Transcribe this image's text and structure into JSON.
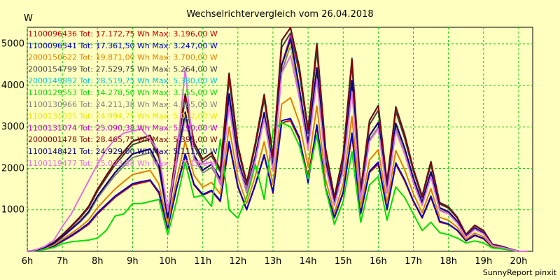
{
  "chart_data": {
    "type": "line",
    "title": "Wechselrichtervergleich vom 26.04.2018",
    "ylabel": "W",
    "xlabel": "",
    "ylim": [
      0,
      5400
    ],
    "xlim": [
      6,
      20.4
    ],
    "grid": true,
    "legend_position": "top-left",
    "y_ticks": [
      1000,
      2000,
      3000,
      4000,
      5000
    ],
    "y_tick_labels": [
      "1000",
      "2000",
      "3000",
      "4000",
      "5000"
    ],
    "x_ticks": [
      6,
      7,
      8,
      9,
      10,
      11,
      12,
      13,
      14,
      15,
      16,
      17,
      18,
      19,
      20
    ],
    "x_tick_labels": [
      "6h",
      "7h",
      "8h",
      "9h",
      "10h",
      "11h",
      "12h",
      "13h",
      "14h",
      "15h",
      "16h",
      "17h",
      "18h",
      "19h",
      "20h"
    ],
    "x": [
      6.0,
      6.25,
      6.5,
      6.75,
      7.0,
      7.25,
      7.5,
      7.75,
      8.0,
      8.25,
      8.5,
      8.75,
      9.0,
      9.25,
      9.5,
      9.75,
      10.0,
      10.25,
      10.5,
      10.75,
      11.0,
      11.25,
      11.5,
      11.75,
      12.0,
      12.25,
      12.5,
      12.75,
      13.0,
      13.25,
      13.5,
      13.75,
      14.0,
      14.25,
      14.5,
      14.75,
      15.0,
      15.25,
      15.5,
      15.75,
      16.0,
      16.25,
      16.5,
      16.75,
      17.0,
      17.25,
      17.5,
      17.75,
      18.0,
      18.25,
      18.5,
      18.75,
      19.0,
      19.25,
      19.5,
      19.75,
      20.0,
      20.25
    ],
    "series": [
      {
        "name": "1100096436 Tot: 17.172,75 Wh Max: 3.196,00 W",
        "color": "#cc0000",
        "values": [
          0,
          20,
          60,
          120,
          240,
          360,
          500,
          650,
          900,
          1100,
          1300,
          1450,
          1600,
          1650,
          1700,
          1400,
          550,
          1500,
          2300,
          1600,
          1350,
          1450,
          1200,
          2600,
          1550,
          1000,
          1600,
          2300,
          1400,
          3100,
          3150,
          2700,
          1800,
          3000,
          1500,
          800,
          1400,
          2800,
          900,
          1900,
          2100,
          1000,
          2100,
          1700,
          1200,
          800,
          1300,
          700,
          650,
          500,
          250,
          380,
          300,
          100,
          80,
          40,
          0,
          0
        ]
      },
      {
        "name": "1100096541 Tot: 17.361,50 Wh Max: 3.247,00 W",
        "color": "#0000cc",
        "values": [
          0,
          20,
          60,
          130,
          250,
          380,
          520,
          680,
          930,
          1130,
          1330,
          1480,
          1630,
          1680,
          1720,
          1430,
          560,
          1520,
          2350,
          1620,
          1370,
          1470,
          1220,
          2650,
          1570,
          1010,
          1620,
          2330,
          1420,
          3150,
          3200,
          2750,
          1650,
          3050,
          1520,
          820,
          1430,
          2850,
          920,
          1930,
          2150,
          1020,
          2130,
          1730,
          1220,
          820,
          1330,
          720,
          660,
          510,
          260,
          390,
          310,
          110,
          80,
          40,
          0,
          0
        ]
      },
      {
        "name": "2000150622 Tot: 19.871,00 Wh Max: 3.700,00 W",
        "color": "#e08000",
        "values": [
          0,
          25,
          70,
          150,
          290,
          430,
          580,
          760,
          1050,
          1280,
          1500,
          1680,
          1850,
          1900,
          1950,
          1620,
          640,
          1720,
          2650,
          1830,
          1550,
          1660,
          1380,
          3000,
          1780,
          1150,
          1830,
          2640,
          1610,
          3550,
          3700,
          3100,
          2050,
          3500,
          1730,
          920,
          1630,
          3250,
          1050,
          2200,
          2450,
          1170,
          2430,
          1970,
          1390,
          930,
          1510,
          820,
          750,
          580,
          290,
          440,
          350,
          120,
          90,
          45,
          0,
          0
        ]
      },
      {
        "name": "2000154799 Tot: 27.529,75 Wh Max: 5.264,00 W",
        "color": "#404040",
        "values": [
          0,
          30,
          100,
          200,
          390,
          590,
          800,
          1050,
          1450,
          1770,
          2080,
          2330,
          2570,
          2640,
          2700,
          2250,
          880,
          2380,
          3670,
          2540,
          2150,
          2300,
          1910,
          4150,
          2470,
          1600,
          2540,
          3660,
          2230,
          4920,
          5260,
          4300,
          2840,
          4850,
          2400,
          1270,
          2260,
          4500,
          1450,
          3050,
          3400,
          1620,
          3370,
          2730,
          1930,
          1290,
          2100,
          1140,
          1040,
          800,
          400,
          610,
          490,
          170,
          120,
          60,
          0,
          0
        ]
      },
      {
        "name": "2000149892 Tot: 28.519,75 Wh Max: 5.380,00 W",
        "color": "#00cccc",
        "values": [
          0,
          30,
          105,
          210,
          400,
          610,
          830,
          1090,
          1500,
          1830,
          2150,
          2410,
          2660,
          2730,
          2800,
          2330,
          910,
          2460,
          3800,
          2630,
          2230,
          2380,
          1980,
          4300,
          2560,
          1660,
          2630,
          3790,
          2310,
          5100,
          5380,
          4450,
          2940,
          5020,
          2480,
          1310,
          2340,
          4660,
          1500,
          3160,
          3520,
          1680,
          3490,
          2830,
          2000,
          1340,
          2170,
          1180,
          1080,
          830,
          410,
          630,
          500,
          170,
          125,
          60,
          0,
          0
        ]
      },
      {
        "name": "1100129553 Tot: 14.278,50 Wh Max: 3.155,00 W",
        "color": "#00dd00",
        "values": [
          0,
          15,
          45,
          90,
          180,
          230,
          250,
          270,
          320,
          500,
          850,
          900,
          1150,
          1150,
          1200,
          1250,
          400,
          1200,
          2150,
          1300,
          1350,
          1080,
          2700,
          1000,
          800,
          1300,
          2100,
          1250,
          2900,
          3100,
          3000,
          2550,
          1750,
          2800,
          1500,
          650,
          1200,
          2400,
          700,
          1600,
          1800,
          750,
          1550,
          1300,
          900,
          500,
          700,
          450,
          400,
          320,
          200,
          250,
          200,
          80,
          60,
          30,
          0,
          0
        ]
      },
      {
        "name": "1100130966 Tot: 24.211,38 Wh Max: 4.965,00 W",
        "color": "#808080",
        "values": [
          0,
          28,
          90,
          180,
          340,
          520,
          700,
          920,
          1280,
          1560,
          1830,
          2050,
          2260,
          2320,
          2380,
          1980,
          780,
          2100,
          3230,
          2240,
          1890,
          2020,
          1680,
          3650,
          2170,
          1410,
          2230,
          3220,
          1960,
          4330,
          4965,
          3790,
          2500,
          4270,
          2110,
          1120,
          1990,
          3960,
          1280,
          2690,
          2990,
          1430,
          2970,
          2400,
          1700,
          1130,
          1850,
          1000,
          920,
          700,
          350,
          540,
          430,
          150,
          110,
          55,
          0,
          0
        ]
      },
      {
        "name": "1100131035 Tot: 24.994,75 Wh Max: 5.012,00 W",
        "color": "#e8e800",
        "values": [
          0,
          28,
          92,
          185,
          350,
          535,
          720,
          950,
          1320,
          1610,
          1890,
          2120,
          2340,
          2400,
          2460,
          2050,
          800,
          2170,
          3340,
          2310,
          1950,
          2090,
          1740,
          3780,
          2240,
          1460,
          2300,
          3330,
          2030,
          4480,
          5012,
          3920,
          2580,
          4410,
          2180,
          1160,
          2060,
          4100,
          1320,
          2780,
          3090,
          1480,
          3070,
          2480,
          1760,
          1170,
          1910,
          1040,
          950,
          720,
          360,
          560,
          440,
          150,
          110,
          55,
          0,
          0
        ]
      },
      {
        "name": "1100131074 Tot: 25.090,38 Wh Max: 5.190,00 W",
        "color": "#cc00cc",
        "values": [
          0,
          29,
          94,
          188,
          355,
          540,
          725,
          960,
          1330,
          1620,
          1900,
          2130,
          2350,
          2410,
          2470,
          2060,
          810,
          2180,
          3360,
          2320,
          1960,
          2100,
          1750,
          3800,
          2250,
          1470,
          2310,
          3350,
          2040,
          4500,
          5190,
          3940,
          2600,
          4430,
          2190,
          1160,
          2070,
          4120,
          1330,
          2790,
          3110,
          1490,
          3090,
          2500,
          1770,
          1180,
          1920,
          1050,
          960,
          730,
          360,
          560,
          450,
          155,
          110,
          55,
          0,
          0
        ]
      },
      {
        "name": "2000001478 Tot: 28.465,75 Wh Max: 5.395,00 W",
        "color": "#800000",
        "values": [
          0,
          30,
          104,
          208,
          398,
          606,
          826,
          1085,
          1495,
          1825,
          2145,
          2405,
          2650,
          2720,
          2790,
          2320,
          905,
          2450,
          3790,
          2620,
          2220,
          2370,
          1970,
          4290,
          2550,
          1650,
          2620,
          3780,
          2300,
          5080,
          5395,
          4440,
          2930,
          5000,
          2470,
          1300,
          2330,
          4640,
          1490,
          3150,
          3510,
          1670,
          3480,
          2820,
          1990,
          1330,
          2160,
          1170,
          1070,
          820,
          410,
          630,
          500,
          170,
          125,
          60,
          0,
          0
        ]
      },
      {
        "name": "1100148421 Tot: 24.929,00 Wh Max: 5.111,00 W",
        "color": "#000080",
        "values": [
          0,
          28,
          93,
          186,
          352,
          536,
          722,
          955,
          1325,
          1615,
          1895,
          2125,
          2345,
          2405,
          2465,
          2055,
          805,
          2175,
          3350,
          2315,
          1955,
          2095,
          1745,
          3790,
          2245,
          1465,
          2305,
          3340,
          2035,
          4490,
          5111,
          3930,
          2590,
          4420,
          2185,
          1160,
          2065,
          4110,
          1325,
          2785,
          3100,
          1485,
          3080,
          2490,
          1765,
          1175,
          1915,
          1045,
          955,
          725,
          360,
          560,
          445,
          150,
          110,
          55,
          0,
          0
        ]
      },
      {
        "name": "1100119477 Tot: 25.023,38 Wh Max: 4.711,00 W",
        "color": "#e070e0",
        "values": [
          0,
          40,
          120,
          260,
          600,
          900,
          1300,
          1700,
          2100,
          2450,
          2700,
          2850,
          2900,
          2950,
          2700,
          2400,
          950,
          2200,
          4400,
          2200,
          2100,
          2150,
          1600,
          3500,
          2100,
          1450,
          2200,
          3200,
          1950,
          4300,
          4711,
          3700,
          2450,
          4150,
          2050,
          1100,
          1950,
          3850,
          1250,
          2650,
          2950,
          1400,
          2900,
          2350,
          1650,
          1100,
          1800,
          980,
          900,
          680,
          340,
          530,
          420,
          140,
          100,
          50,
          0,
          0
        ]
      }
    ]
  },
  "footer": "SunnyReport pinxit"
}
